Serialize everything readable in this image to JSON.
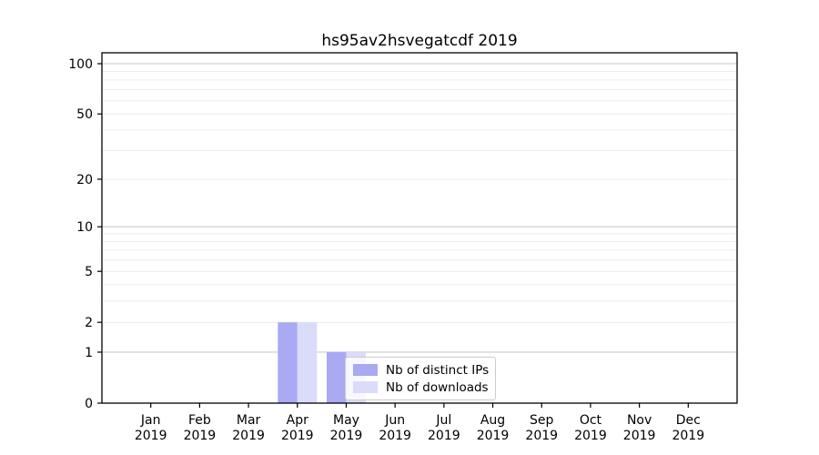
{
  "chart_data": {
    "type": "bar",
    "title": "hs95av2hsvegatcdf 2019",
    "categories": [
      "Jan",
      "Feb",
      "Mar",
      "Apr",
      "May",
      "Jun",
      "Jul",
      "Aug",
      "Sep",
      "Oct",
      "Nov",
      "Dec"
    ],
    "category_year": "2019",
    "series": [
      {
        "name": "Nb of distinct IPs",
        "color": "#a9a9f4",
        "values": [
          0,
          0,
          0,
          2,
          1,
          0,
          0,
          0,
          0,
          0,
          0,
          0
        ]
      },
      {
        "name": "Nb of downloads",
        "color": "#dbdbfa",
        "values": [
          0,
          0,
          0,
          2,
          1,
          0,
          0,
          0,
          0,
          0,
          0,
          0
        ]
      }
    ],
    "yscale": "log1p",
    "ylim": [
      0,
      117
    ],
    "ytick_labels": [
      0,
      1,
      2,
      5,
      10,
      20,
      50,
      100
    ],
    "grid": "horizontal",
    "grid_major_values": [
      1,
      10,
      100
    ],
    "grid_minor_values": [
      2,
      3,
      4,
      5,
      6,
      7,
      8,
      9,
      20,
      30,
      40,
      50,
      60,
      70,
      80,
      90
    ],
    "legend_position": "lower-center",
    "colors": {
      "axis": "#000000",
      "text": "#000000",
      "grid_major": "#c9c9c9",
      "grid_minor": "#ececec",
      "legend_border": "#cccccc"
    }
  }
}
